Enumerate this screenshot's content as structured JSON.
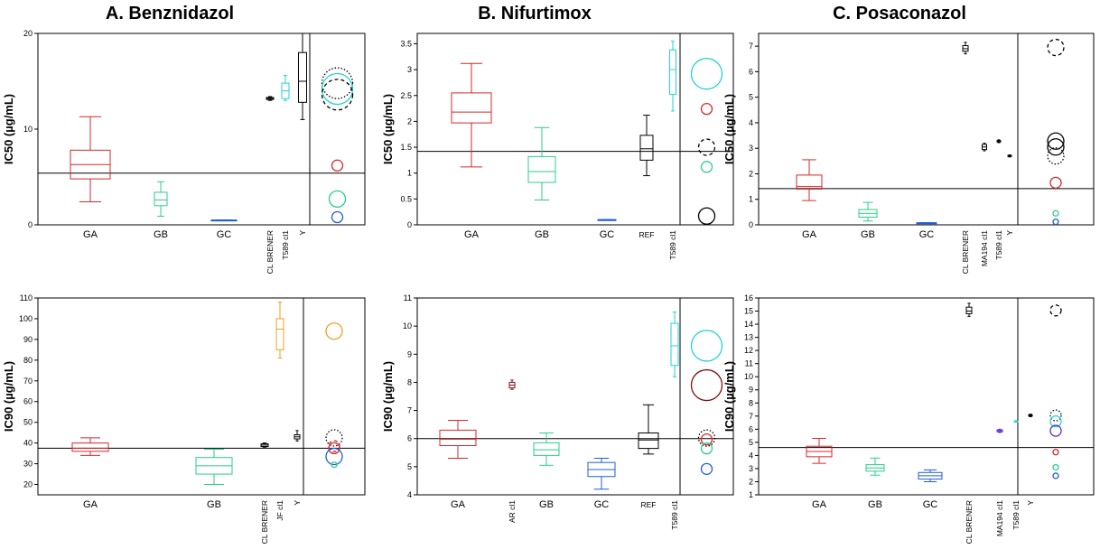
{
  "panel_titles": [
    "A. Benznidazol",
    "B. Nifurtimox",
    "C. Posaconazol"
  ],
  "chart_data": [
    {
      "id": "A-IC50",
      "type": "box",
      "title": "A. Benznidazol",
      "ylabel": "IC50 (µg/mL)",
      "ylim": [
        0,
        20
      ],
      "yticks": [
        0,
        10,
        20
      ],
      "reference_line": 5.4,
      "boxes": [
        {
          "label": "GA",
          "rotated": false,
          "color": "#d62728",
          "min": 2.4,
          "q1": 4.8,
          "median": 6.3,
          "q3": 7.8,
          "max": 11.3
        },
        {
          "label": "GB",
          "rotated": false,
          "color": "#2bcc8c",
          "min": 0.9,
          "q1": 2.0,
          "median": 2.6,
          "q3": 3.4,
          "max": 4.5
        },
        {
          "label": "GC",
          "rotated": false,
          "color": "#1f5fd6",
          "min": 0.5,
          "q1": 0.5,
          "median": 0.5,
          "q3": 0.5,
          "max": 0.5
        },
        {
          "label": "CL BRENER",
          "rotated": true,
          "color": "#000000",
          "min": 13.0,
          "q1": 13.1,
          "median": 13.2,
          "q3": 13.3,
          "max": 13.4
        },
        {
          "label": "T589 cl1",
          "rotated": true,
          "color": "#22d3d3",
          "min": 13.0,
          "q1": 13.2,
          "median": 14.0,
          "q3": 14.8,
          "max": 15.6
        },
        {
          "label": "Y",
          "rotated": true,
          "color": "#000000",
          "min": 11.0,
          "q1": 12.8,
          "median": 15.0,
          "q3": 18.0,
          "max": 20.0
        }
      ],
      "circles": [
        {
          "value": 14.8,
          "color": "#000000",
          "dash": "dot",
          "size": "large"
        },
        {
          "value": 14.2,
          "color": "#22d3d3",
          "dash": "solid",
          "size": "large"
        },
        {
          "value": 13.6,
          "color": "#000000",
          "dash": "dash",
          "size": "large"
        },
        {
          "value": 6.2,
          "color": "#d62728",
          "dash": "solid",
          "size": "small"
        },
        {
          "value": 2.7,
          "color": "#2bcc8c",
          "dash": "solid",
          "size": "medium"
        },
        {
          "value": 0.8,
          "color": "#1f5fd6",
          "dash": "solid",
          "size": "small"
        }
      ]
    },
    {
      "id": "B-IC50",
      "type": "box",
      "title": "B. Nifurtimox",
      "ylabel": "IC50 (µg/mL)",
      "ylim": [
        0,
        3.7
      ],
      "yticks": [
        0,
        0.5,
        1,
        1.5,
        2,
        2.5,
        3,
        3.5
      ],
      "reference_line": 1.42,
      "boxes": [
        {
          "label": "GA",
          "rotated": false,
          "color": "#d62728",
          "min": 1.12,
          "q1": 1.97,
          "median": 2.18,
          "q3": 2.55,
          "max": 3.12
        },
        {
          "label": "GB",
          "rotated": false,
          "color": "#2bcc8c",
          "min": 0.48,
          "q1": 0.82,
          "median": 1.03,
          "q3": 1.32,
          "max": 1.88
        },
        {
          "label": "GC",
          "rotated": false,
          "color": "#1f5fd6",
          "min": 0.1,
          "q1": 0.1,
          "median": 0.1,
          "q3": 0.1,
          "max": 0.1
        },
        {
          "label": "REF",
          "rotated": false,
          "color": "#000000",
          "min": 0.95,
          "q1": 1.25,
          "median": 1.47,
          "q3": 1.73,
          "max": 2.12
        },
        {
          "label": "T589 cl1",
          "rotated": true,
          "color": "#22d3d3",
          "min": 2.2,
          "q1": 2.52,
          "median": 3.0,
          "q3": 3.38,
          "max": 3.55
        }
      ],
      "circles": [
        {
          "value": 2.92,
          "color": "#22d3d3",
          "dash": "solid",
          "size": "large"
        },
        {
          "value": 2.24,
          "color": "#d62728",
          "dash": "solid",
          "size": "small"
        },
        {
          "value": 1.5,
          "color": "#000000",
          "dash": "dash",
          "size": "medium"
        },
        {
          "value": 1.12,
          "color": "#2bcc8c",
          "dash": "solid",
          "size": "small"
        },
        {
          "value": 0.17,
          "color": "#000000",
          "dash": "solid",
          "size": "medium"
        }
      ]
    },
    {
      "id": "C-IC50",
      "type": "box",
      "title": "C. Posaconazol",
      "ylabel": "IC50 (µg/mL)",
      "ylim": [
        0,
        7.5
      ],
      "yticks": [
        0,
        1,
        2,
        3,
        4,
        5,
        6,
        7
      ],
      "reference_line": 1.42,
      "boxes": [
        {
          "label": "GA",
          "rotated": false,
          "color": "#d62728",
          "min": 0.95,
          "q1": 1.4,
          "median": 1.5,
          "q3": 1.95,
          "max": 2.55
        },
        {
          "label": "GB",
          "rotated": false,
          "color": "#2bcc8c",
          "min": 0.15,
          "q1": 0.3,
          "median": 0.45,
          "q3": 0.6,
          "max": 0.88
        },
        {
          "label": "GC",
          "rotated": false,
          "color": "#1f5fd6",
          "min": 0.08,
          "q1": 0.08,
          "median": 0.08,
          "q3": 0.08,
          "max": 0.08
        },
        {
          "label": "CL BRENER",
          "rotated": true,
          "color": "#000000",
          "min": 6.7,
          "q1": 6.8,
          "median": 6.9,
          "q3": 7.02,
          "max": 7.15
        },
        {
          "label": "MA194 cl1",
          "rotated": true,
          "color": "#000000",
          "min": 2.9,
          "q1": 2.95,
          "median": 3.05,
          "q3": 3.15,
          "max": 3.2
        },
        {
          "label": "T589 cl1",
          "rotated": true,
          "color": "#000000",
          "min": 3.22,
          "q1": 3.25,
          "median": 3.28,
          "q3": 3.3,
          "max": 3.33
        },
        {
          "label": "Y",
          "rotated": true,
          "color": "#000000",
          "min": 2.66,
          "q1": 2.68,
          "median": 2.7,
          "q3": 2.72,
          "max": 2.74
        }
      ],
      "circles": [
        {
          "value": 6.95,
          "color": "#000000",
          "dash": "dash",
          "size": "medium"
        },
        {
          "value": 3.28,
          "color": "#000000",
          "dash": "solid",
          "size": "medium"
        },
        {
          "value": 3.05,
          "color": "#000000",
          "dash": "solid",
          "size": "medium"
        },
        {
          "value": 2.7,
          "color": "#000000",
          "dash": "dot",
          "size": "medium"
        },
        {
          "value": 1.65,
          "color": "#d62728",
          "dash": "solid",
          "size": "small"
        },
        {
          "value": 0.45,
          "color": "#2bcc8c",
          "dash": "solid",
          "size": "tiny"
        },
        {
          "value": 0.12,
          "color": "#1f5fd6",
          "dash": "solid",
          "size": "tiny"
        }
      ]
    },
    {
      "id": "A-IC90",
      "type": "box",
      "title": "",
      "ylabel": "IC90 (µg/mL)",
      "ylim": [
        15,
        110
      ],
      "yticks": [
        20,
        30,
        40,
        50,
        60,
        70,
        80,
        90,
        100,
        110
      ],
      "reference_line": 37.5,
      "boxes": [
        {
          "label": "GA",
          "rotated": false,
          "color": "#d62728",
          "min": 34,
          "q1": 36,
          "median": 37.5,
          "q3": 40,
          "max": 42.5
        },
        {
          "label": "GB",
          "rotated": false,
          "color": "#2bcc8c",
          "min": 20,
          "q1": 25,
          "median": 29,
          "q3": 33,
          "max": 37
        },
        {
          "label": "CL BRENER",
          "rotated": true,
          "color": "#000000",
          "min": 38,
          "q1": 38.3,
          "median": 39,
          "q3": 39.6,
          "max": 40
        },
        {
          "label": "JF cl1",
          "rotated": true,
          "color": "#f0a020",
          "min": 81,
          "q1": 85,
          "median": 95,
          "q3": 100,
          "max": 108
        },
        {
          "label": "Y",
          "rotated": true,
          "color": "#000000",
          "min": 41,
          "q1": 42,
          "median": 43,
          "q3": 44,
          "max": 46
        }
      ],
      "circles": [
        {
          "value": 94,
          "color": "#f0a020",
          "dash": "solid",
          "size": "medium"
        },
        {
          "value": 42.5,
          "color": "#000000",
          "dash": "dot",
          "size": "medium"
        },
        {
          "value": 38.5,
          "color": "#d62728",
          "dash": "dash",
          "size": "small"
        },
        {
          "value": 37.5,
          "color": "#d62728",
          "dash": "solid",
          "size": "small"
        },
        {
          "value": 33.5,
          "color": "#1f5fd6",
          "dash": "solid",
          "size": "medium"
        },
        {
          "value": 29.5,
          "color": "#2bcc8c",
          "dash": "solid",
          "size": "tiny"
        }
      ]
    },
    {
      "id": "B-IC90",
      "type": "box",
      "title": "",
      "ylabel": "IC90 (µg/mL)",
      "ylim": [
        4,
        11
      ],
      "yticks": [
        4,
        5,
        6,
        7,
        8,
        9,
        10,
        11
      ],
      "reference_line": 6.0,
      "boxes": [
        {
          "label": "GA",
          "rotated": false,
          "color": "#d62728",
          "min": 5.3,
          "q1": 5.75,
          "median": 5.98,
          "q3": 6.3,
          "max": 6.65
        },
        {
          "label": "AR cl1",
          "rotated": true,
          "color": "#7a1010",
          "min": 7.75,
          "q1": 7.8,
          "median": 7.9,
          "q3": 8.0,
          "max": 8.08
        },
        {
          "label": "GB",
          "rotated": false,
          "color": "#2bcc8c",
          "min": 5.05,
          "q1": 5.4,
          "median": 5.6,
          "q3": 5.85,
          "max": 6.2
        },
        {
          "label": "GC",
          "rotated": false,
          "color": "#1f5fd6",
          "min": 4.2,
          "q1": 4.65,
          "median": 4.9,
          "q3": 5.15,
          "max": 5.3
        },
        {
          "label": "REF",
          "rotated": false,
          "color": "#000000",
          "min": 5.45,
          "q1": 5.65,
          "median": 5.95,
          "q3": 6.2,
          "max": 7.2
        },
        {
          "label": "T589 cl1",
          "rotated": true,
          "color": "#22d3d3",
          "min": 8.2,
          "q1": 8.6,
          "median": 9.3,
          "q3": 10.1,
          "max": 10.5
        }
      ],
      "circles": [
        {
          "value": 9.3,
          "color": "#22d3d3",
          "dash": "solid",
          "size": "large"
        },
        {
          "value": 7.9,
          "color": "#7a1010",
          "dash": "solid",
          "size": "large"
        },
        {
          "value": 6.02,
          "color": "#000000",
          "dash": "dot",
          "size": "medium"
        },
        {
          "value": 5.97,
          "color": "#d62728",
          "dash": "solid",
          "size": "small"
        },
        {
          "value": 5.65,
          "color": "#2bcc8c",
          "dash": "solid",
          "size": "small"
        },
        {
          "value": 4.92,
          "color": "#1f5fd6",
          "dash": "solid",
          "size": "small"
        }
      ]
    },
    {
      "id": "C-IC90",
      "type": "box",
      "title": "",
      "ylabel": "IC90 (µg/mL)",
      "ylim": [
        1,
        16
      ],
      "yticks": [
        1,
        2,
        3,
        4,
        5,
        6,
        7,
        8,
        9,
        10,
        11,
        12,
        13,
        14,
        15,
        16
      ],
      "reference_line": 4.6,
      "boxes": [
        {
          "label": "GA",
          "rotated": false,
          "color": "#d62728",
          "min": 3.4,
          "q1": 3.9,
          "median": 4.3,
          "q3": 4.7,
          "max": 5.3
        },
        {
          "label": "GB",
          "rotated": false,
          "color": "#2bcc8c",
          "min": 2.5,
          "q1": 2.8,
          "median": 3.05,
          "q3": 3.3,
          "max": 3.8
        },
        {
          "label": "GC",
          "rotated": false,
          "color": "#1f5fd6",
          "min": 2.0,
          "q1": 2.2,
          "median": 2.45,
          "q3": 2.7,
          "max": 2.9
        },
        {
          "label": "CL BRENER",
          "rotated": true,
          "color": "#000000",
          "min": 14.6,
          "q1": 14.8,
          "median": 15.0,
          "q3": 15.3,
          "max": 15.6
        },
        {
          "label": "MA194 cl1",
          "rotated": true,
          "color": "#5b2bd6",
          "min": 5.75,
          "q1": 5.8,
          "median": 5.88,
          "q3": 5.95,
          "max": 6.0
        },
        {
          "label": "T589 cl1",
          "rotated": true,
          "color": "#22d3d3",
          "min": 6.55,
          "q1": 6.58,
          "median": 6.6,
          "q3": 6.62,
          "max": 6.65
        },
        {
          "label": "Y",
          "rotated": true,
          "color": "#000000",
          "min": 6.95,
          "q1": 7.0,
          "median": 7.05,
          "q3": 7.1,
          "max": 7.15
        }
      ],
      "circles": [
        {
          "value": 15.05,
          "color": "#000000",
          "dash": "dash",
          "size": "small"
        },
        {
          "value": 7.05,
          "color": "#000000",
          "dash": "dot",
          "size": "small"
        },
        {
          "value": 6.6,
          "color": "#22d3d3",
          "dash": "solid",
          "size": "small"
        },
        {
          "value": 5.88,
          "color": "#5b2bd6",
          "dash": "solid",
          "size": "small"
        },
        {
          "value": 4.25,
          "color": "#d62728",
          "dash": "solid",
          "size": "tiny"
        },
        {
          "value": 3.1,
          "color": "#2bcc8c",
          "dash": "solid",
          "size": "tiny"
        },
        {
          "value": 2.45,
          "color": "#1f5fd6",
          "dash": "solid",
          "size": "tiny"
        }
      ]
    }
  ]
}
